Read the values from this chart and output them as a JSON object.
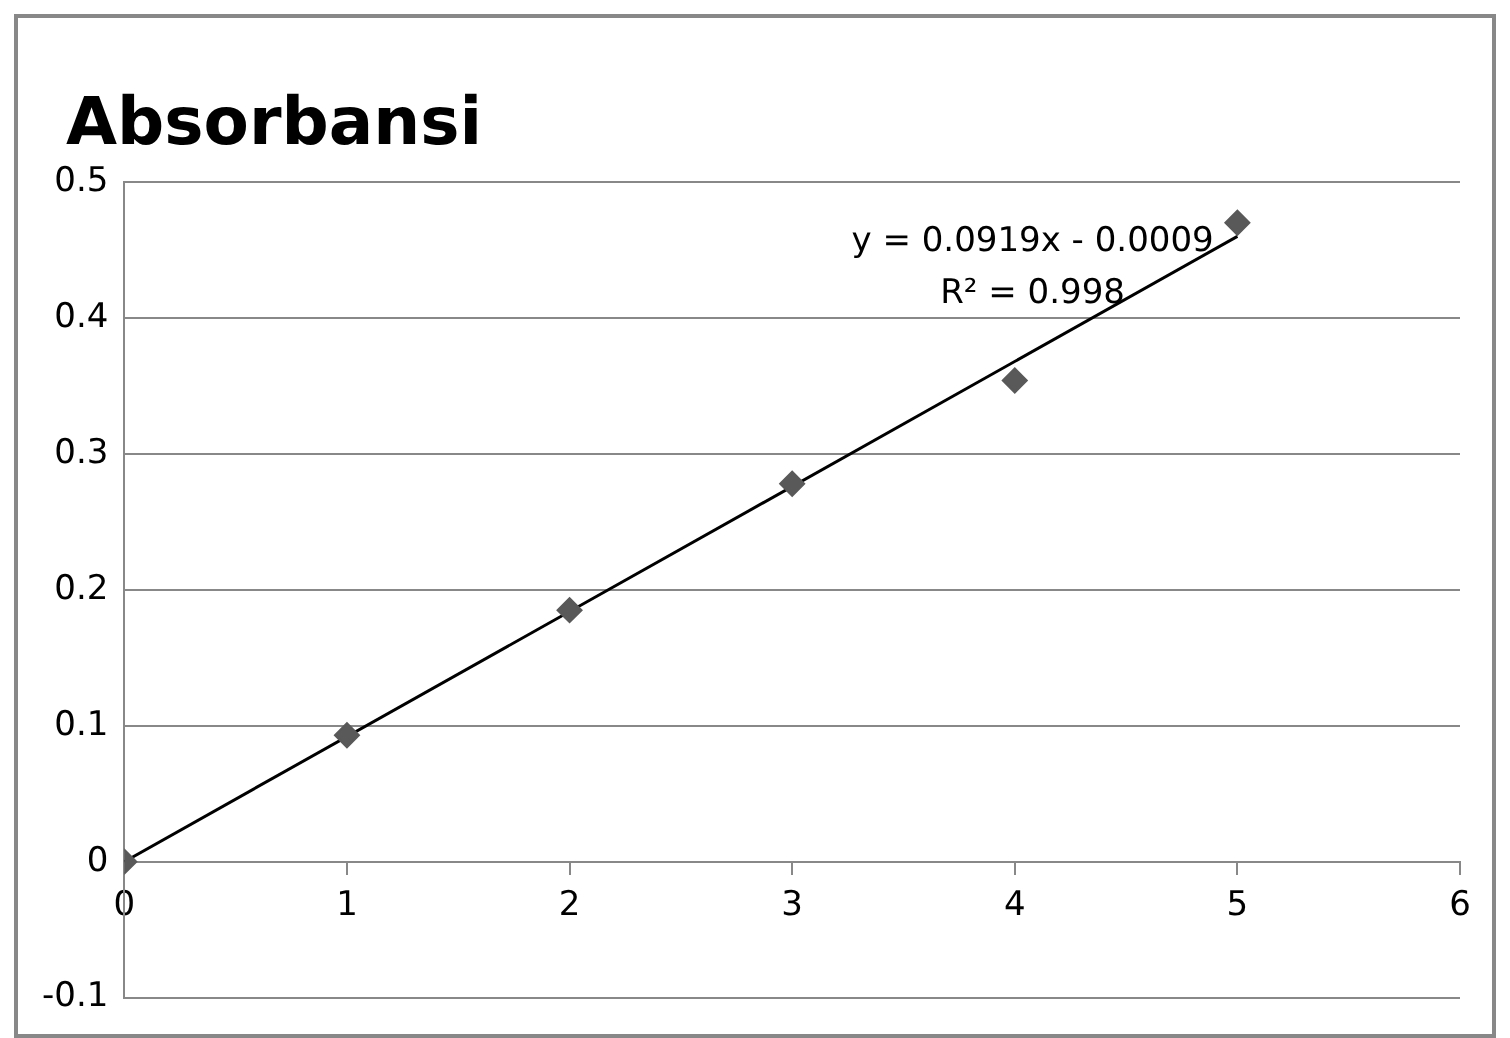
{
  "chart_data": {
    "type": "scatter",
    "title": "Absorbansi",
    "series": [
      {
        "color": "#595959",
        "marker": "diamond",
        "x": [
          0,
          1,
          2,
          3,
          4,
          5
        ],
        "values": [
          0,
          0.093,
          0.185,
          0.278,
          0.354,
          0.47
        ]
      },
      {
        "type": "line",
        "color": "#000000",
        "marker": "none",
        "x": [
          0,
          5
        ],
        "values": [
          0,
          0.46
        ]
      }
    ],
    "xlim": [
      0,
      6
    ],
    "xticks": [
      0,
      1,
      2,
      3,
      4,
      5,
      6
    ],
    "ylim": [
      -0.1,
      0.5
    ],
    "yticks": [
      -0.1,
      0,
      0.1,
      0.2,
      0.3,
      0.4,
      0.5
    ],
    "grid": "y",
    "legend": false,
    "annotations": [
      "y = 0.0919x - 0.0009",
      "R² = 0.998"
    ]
  }
}
